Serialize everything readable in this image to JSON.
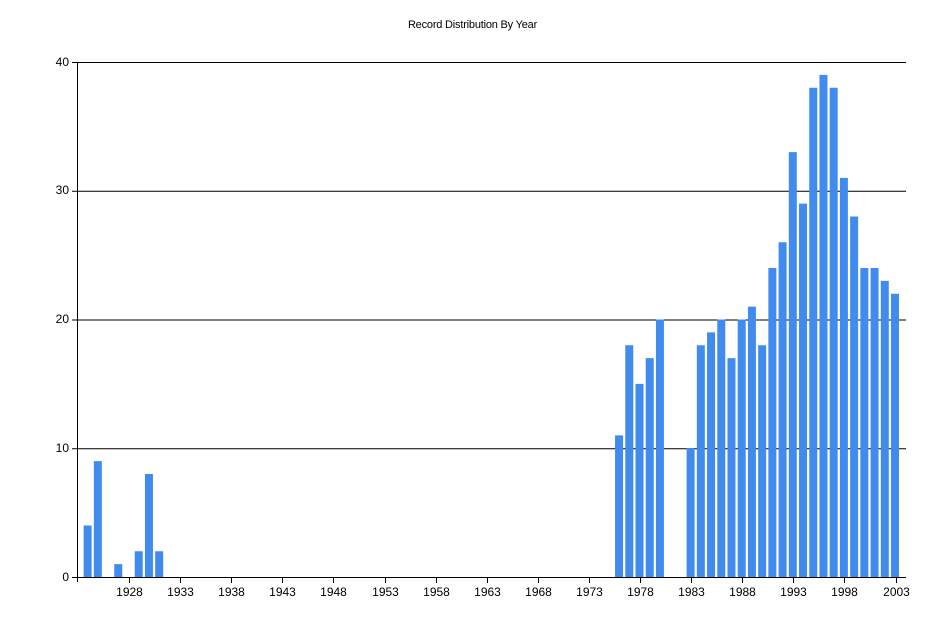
{
  "chart_data": {
    "type": "bar",
    "title": "Record Distribution By Year",
    "xlabel": "",
    "ylabel": "",
    "ylim": [
      0,
      40
    ],
    "yticks": [
      0,
      10,
      20,
      30,
      40
    ],
    "xticks": [
      1928,
      1933,
      1938,
      1943,
      1948,
      1953,
      1958,
      1963,
      1968,
      1973,
      1978,
      1983,
      1988,
      1993,
      1998,
      2003
    ],
    "grid": "horizontal",
    "legend": null,
    "bar_color": "#428BEE",
    "categories": [
      1924,
      1925,
      1926,
      1927,
      1928,
      1929,
      1930,
      1931,
      1976,
      1977,
      1978,
      1979,
      1980,
      1981,
      1982,
      1983,
      1984,
      1985,
      1986,
      1987,
      1988,
      1989,
      1990,
      1991,
      1992,
      1993,
      1994,
      1995,
      1996,
      1997,
      1998,
      1999,
      2000,
      2001,
      2002,
      2003
    ],
    "values": [
      4,
      9,
      0,
      1,
      0,
      2,
      8,
      2,
      11,
      18,
      15,
      17,
      20,
      0,
      0,
      10,
      18,
      19,
      20,
      17,
      20,
      21,
      18,
      24,
      26,
      33,
      29,
      38,
      39,
      38,
      31,
      28,
      24,
      24,
      23,
      22
    ]
  }
}
